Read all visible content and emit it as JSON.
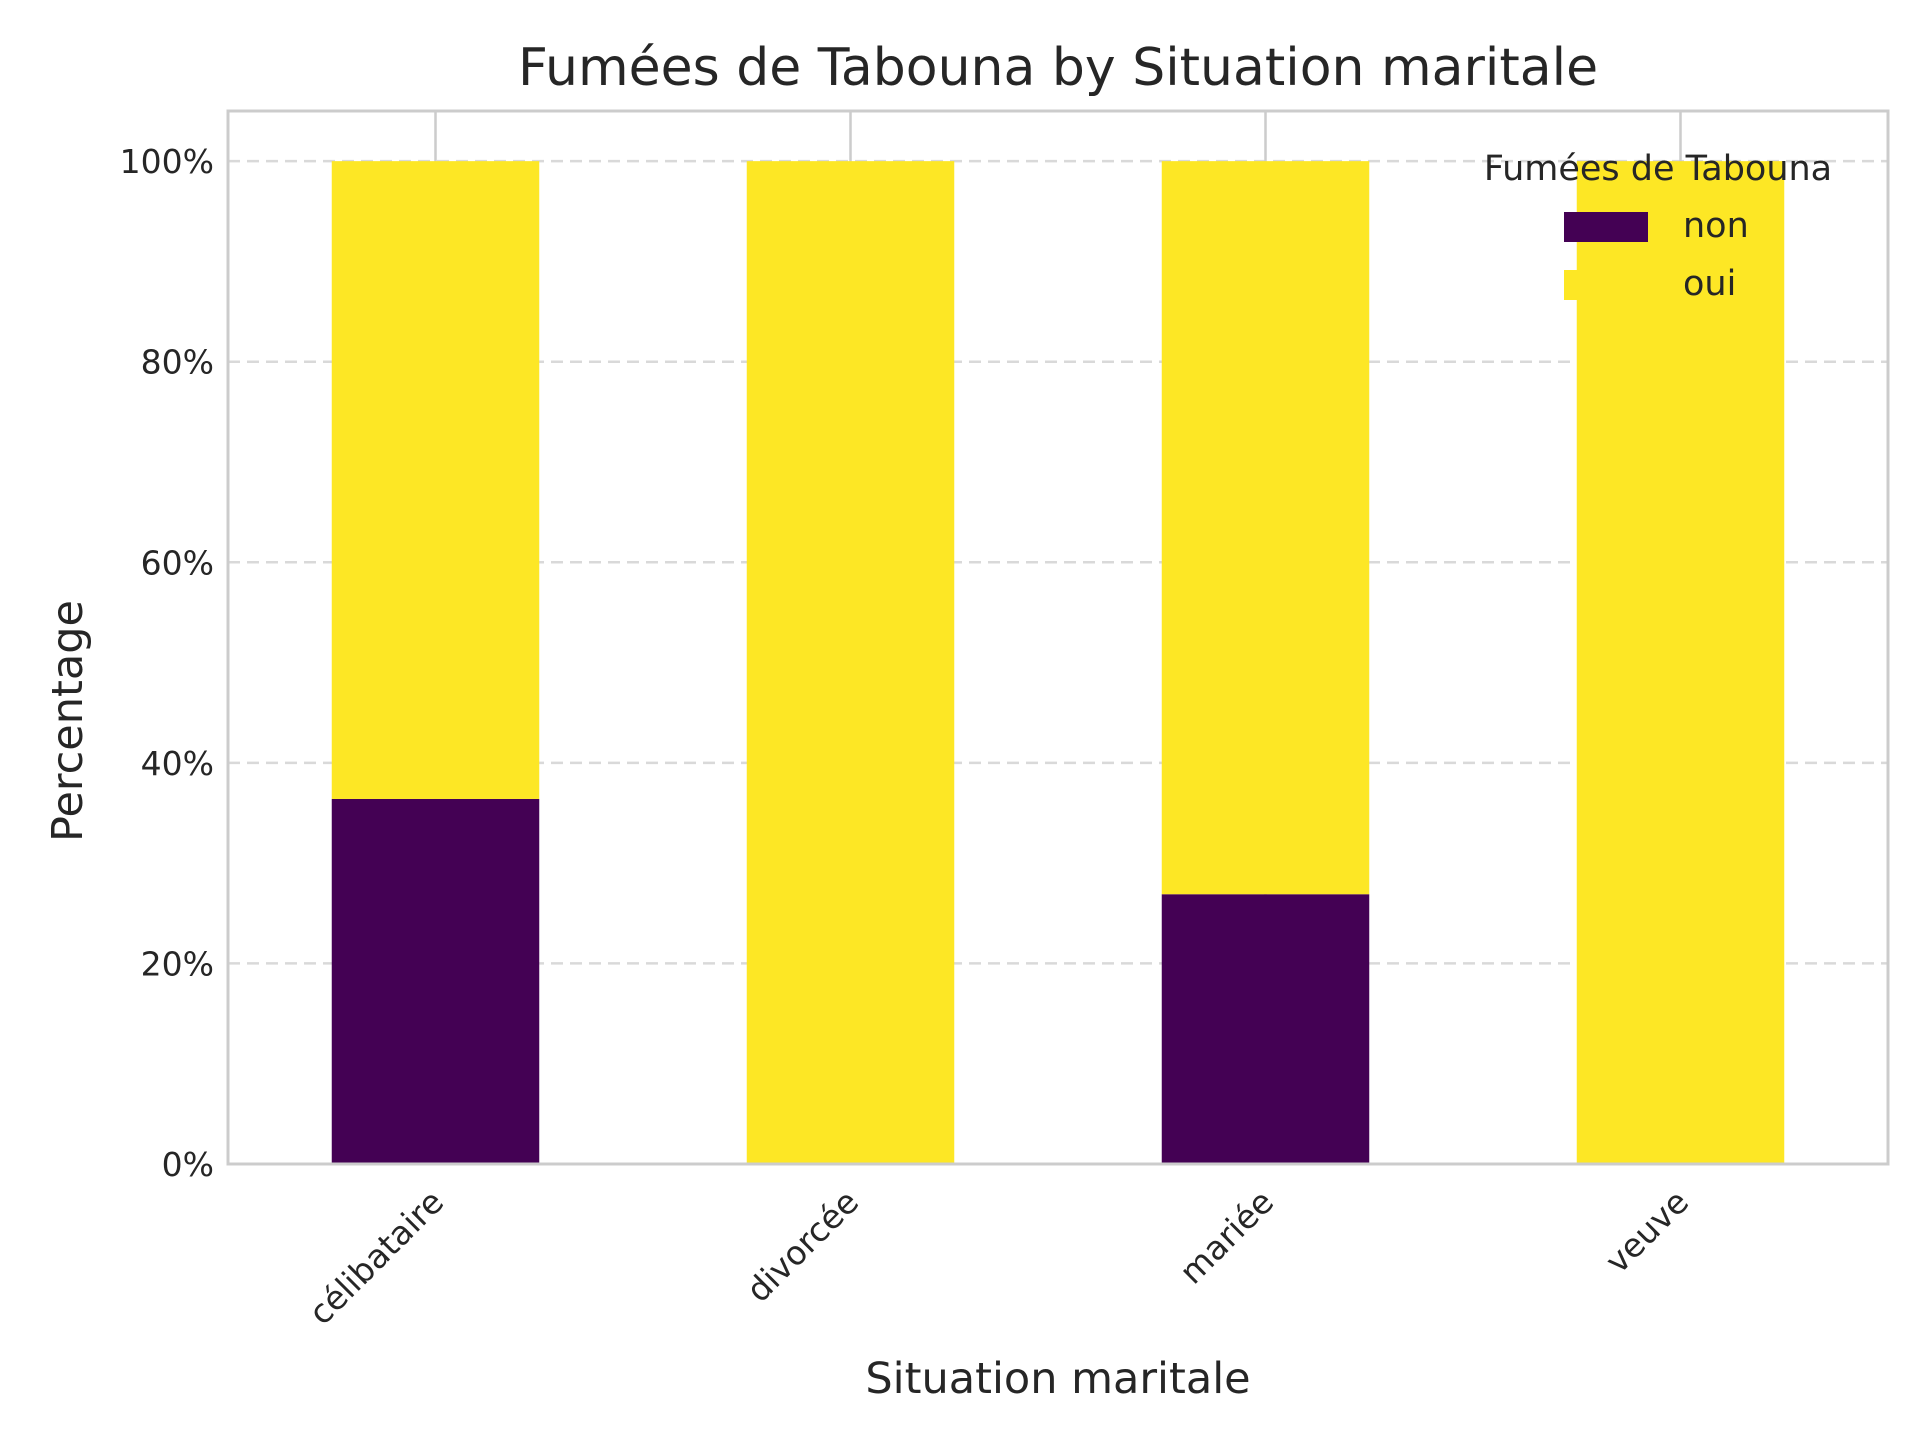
{
  "chart_data": {
    "type": "bar",
    "stacked": true,
    "title": "Fumées de Tabouna by Situation maritale",
    "xlabel": "Situation maritale",
    "ylabel": "Percentage",
    "categories": [
      "célibataire",
      "divorcée",
      "mariée",
      "veuve"
    ],
    "series": [
      {
        "name": "non",
        "color": "#440154",
        "values": [
          36.4,
          0,
          26.9,
          0
        ]
      },
      {
        "name": "oui",
        "color": "#fde725",
        "values": [
          63.6,
          100,
          73.1,
          100
        ]
      }
    ],
    "ylim": [
      0,
      105
    ],
    "yticks": [
      0,
      20,
      40,
      60,
      80,
      100
    ],
    "ytick_labels": [
      "0%",
      "20%",
      "40%",
      "60%",
      "80%",
      "100%"
    ],
    "grid": true,
    "legend": {
      "title": "Fumées de Tabouna",
      "position": "top-right"
    }
  }
}
